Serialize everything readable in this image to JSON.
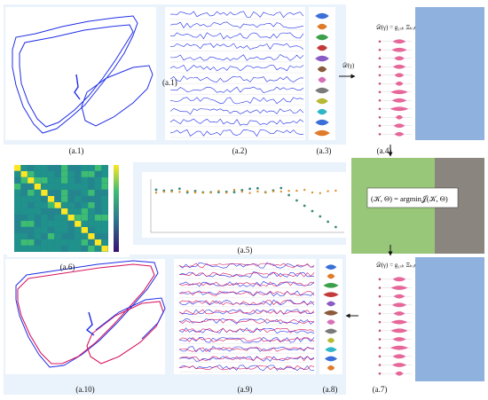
{
  "captions": {
    "a1": "(a.1)",
    "a2": "(a.2)",
    "a3": "(a.3)",
    "a4": "(a.4)",
    "a5": "(a.5)",
    "a6": "(a.6)",
    "a7": "(a.7)",
    "a8": "(a.8)",
    "a9": "(a.9)",
    "a10": "(a.10)"
  },
  "equations": {
    "objective": "(𝒦, Θ) = argmin𝒥(𝒦, Θ)",
    "distribution_label": "𝒟(γ)",
    "distribution_top": "𝒟(γ) = g₁ₓₖ Ξₖₓd",
    "distribution_bottom": "𝒟(γ) = g₁ₓₖ Ξₖₓd"
  },
  "colors": {
    "traj_blue": "#1f2ee6",
    "traj_red": "#d81860",
    "violin_pink": "#e6679a",
    "panel_bg": "#e8f1fb",
    "green_block": "#98c77a",
    "gray_block": "#8a857e",
    "blue_block": "#8fb1dd",
    "heatmap_base": "#1f8a8c"
  }
}
